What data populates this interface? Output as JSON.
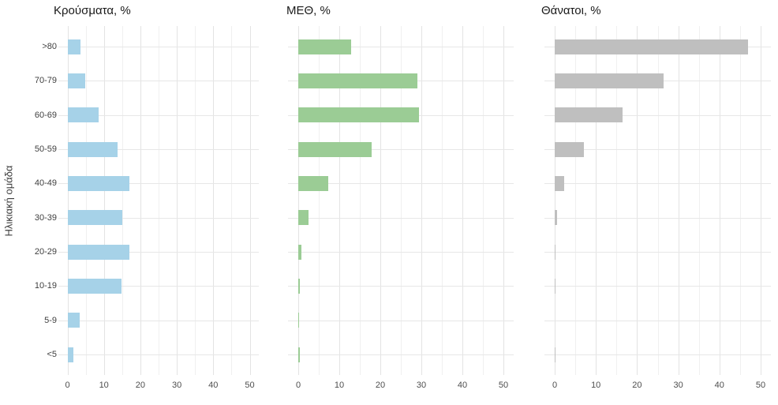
{
  "figure": {
    "y_axis_title": "Ηλικιακή ομάδα",
    "colors": {
      "cases_bar": "#A6D2E8",
      "icu_bar": "#9BCC95",
      "deaths_bar": "#BFBFBF",
      "grid_major": "#E3E3E3",
      "grid_minor": "#F0F0F0",
      "axis_text": "#4D4D4D",
      "title_text": "#1A1A1A"
    }
  },
  "chart_data": [
    {
      "type": "bar",
      "orientation": "horizontal",
      "id": "cases",
      "title": "Κρούσματα, %",
      "categories": [
        ">80",
        "70-79",
        "60-69",
        "50-59",
        "40-49",
        "30-39",
        "20-29",
        "10-19",
        "5-9",
        "<5"
      ],
      "values": [
        3.5,
        4.8,
        8.6,
        13.7,
        17.0,
        15.0,
        17.0,
        14.8,
        3.4,
        1.6
      ],
      "bar_color": "#A6D2E8",
      "xlabel": "",
      "ylabel": "Ηλικιακή ομάδα",
      "xlim": [
        0,
        50
      ],
      "xticks": [
        0,
        10,
        20,
        30,
        40,
        50
      ],
      "xticks_minor": [
        5,
        15,
        25,
        35,
        45
      ],
      "grid": true,
      "show_y_labels": true
    },
    {
      "type": "bar",
      "orientation": "horizontal",
      "id": "icu",
      "title": "ΜΕΘ, %",
      "categories": [
        ">80",
        "70-79",
        "60-69",
        "50-59",
        "40-49",
        "30-39",
        "20-29",
        "10-19",
        "5-9",
        "<5"
      ],
      "values": [
        12.8,
        29.0,
        29.5,
        17.9,
        7.3,
        2.4,
        0.8,
        0.3,
        0.2,
        0.3
      ],
      "bar_color": "#9BCC95",
      "xlabel": "",
      "ylabel": "",
      "xlim": [
        0,
        50
      ],
      "xticks": [
        0,
        10,
        20,
        30,
        40,
        50
      ],
      "xticks_minor": [
        5,
        15,
        25,
        35,
        45
      ],
      "grid": true,
      "show_y_labels": false
    },
    {
      "type": "bar",
      "orientation": "horizontal",
      "id": "deaths",
      "title": "Θάνατοι, %",
      "categories": [
        ">80",
        "70-79",
        "60-69",
        "50-59",
        "40-49",
        "30-39",
        "20-29",
        "10-19",
        "5-9",
        "<5"
      ],
      "values": [
        46.9,
        26.5,
        16.4,
        7.1,
        2.2,
        0.6,
        0.2,
        0.2,
        0.0,
        0.1
      ],
      "bar_color": "#BFBFBF",
      "xlabel": "",
      "ylabel": "",
      "xlim": [
        0,
        50
      ],
      "xticks": [
        0,
        10,
        20,
        30,
        40,
        50
      ],
      "xticks_minor": [
        5,
        15,
        25,
        35,
        45
      ],
      "grid": true,
      "show_y_labels": false
    }
  ]
}
